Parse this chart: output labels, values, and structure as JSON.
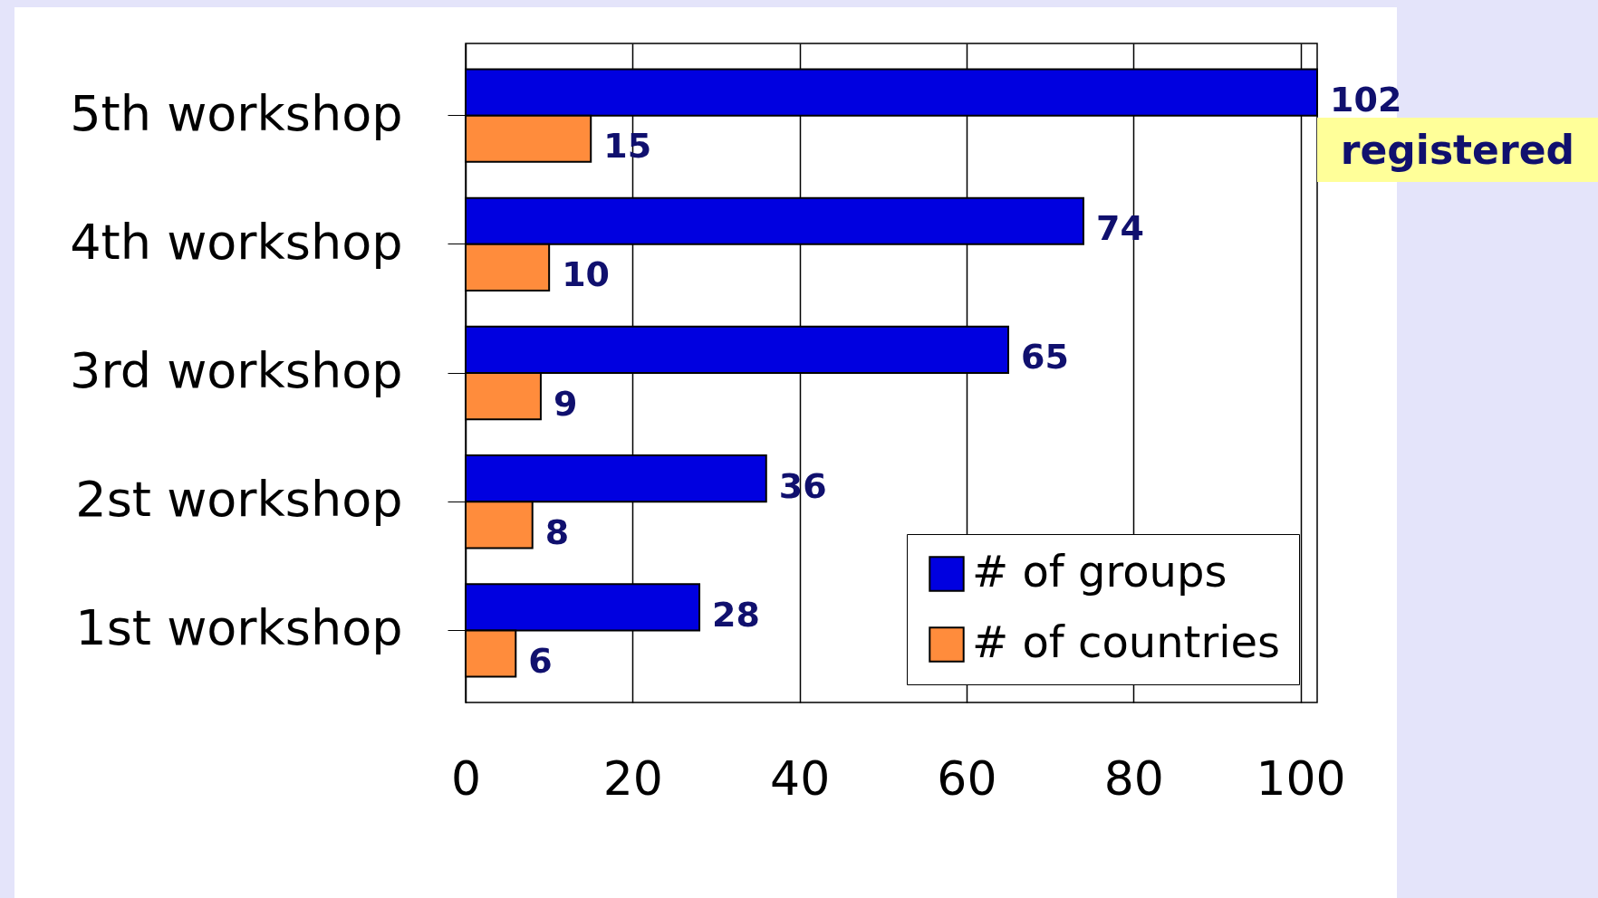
{
  "chart_data": {
    "type": "bar",
    "orientation": "horizontal",
    "categories": [
      "5th workshop",
      "4th workshop",
      "3rd workshop",
      "2st workshop",
      "1st workshop"
    ],
    "series": [
      {
        "name": "# of groups",
        "color": "#0000e0",
        "values": [
          102,
          74,
          65,
          36,
          28
        ]
      },
      {
        "name": "# of countries",
        "color": "#ff8c3c",
        "values": [
          15,
          10,
          9,
          8,
          6
        ]
      }
    ],
    "xlim": [
      0,
      102
    ],
    "xticks": [
      0,
      20,
      40,
      60,
      80,
      100
    ],
    "grid": "x",
    "legend": "bottom right",
    "data_labels": true,
    "annotations": [
      "registered"
    ]
  }
}
